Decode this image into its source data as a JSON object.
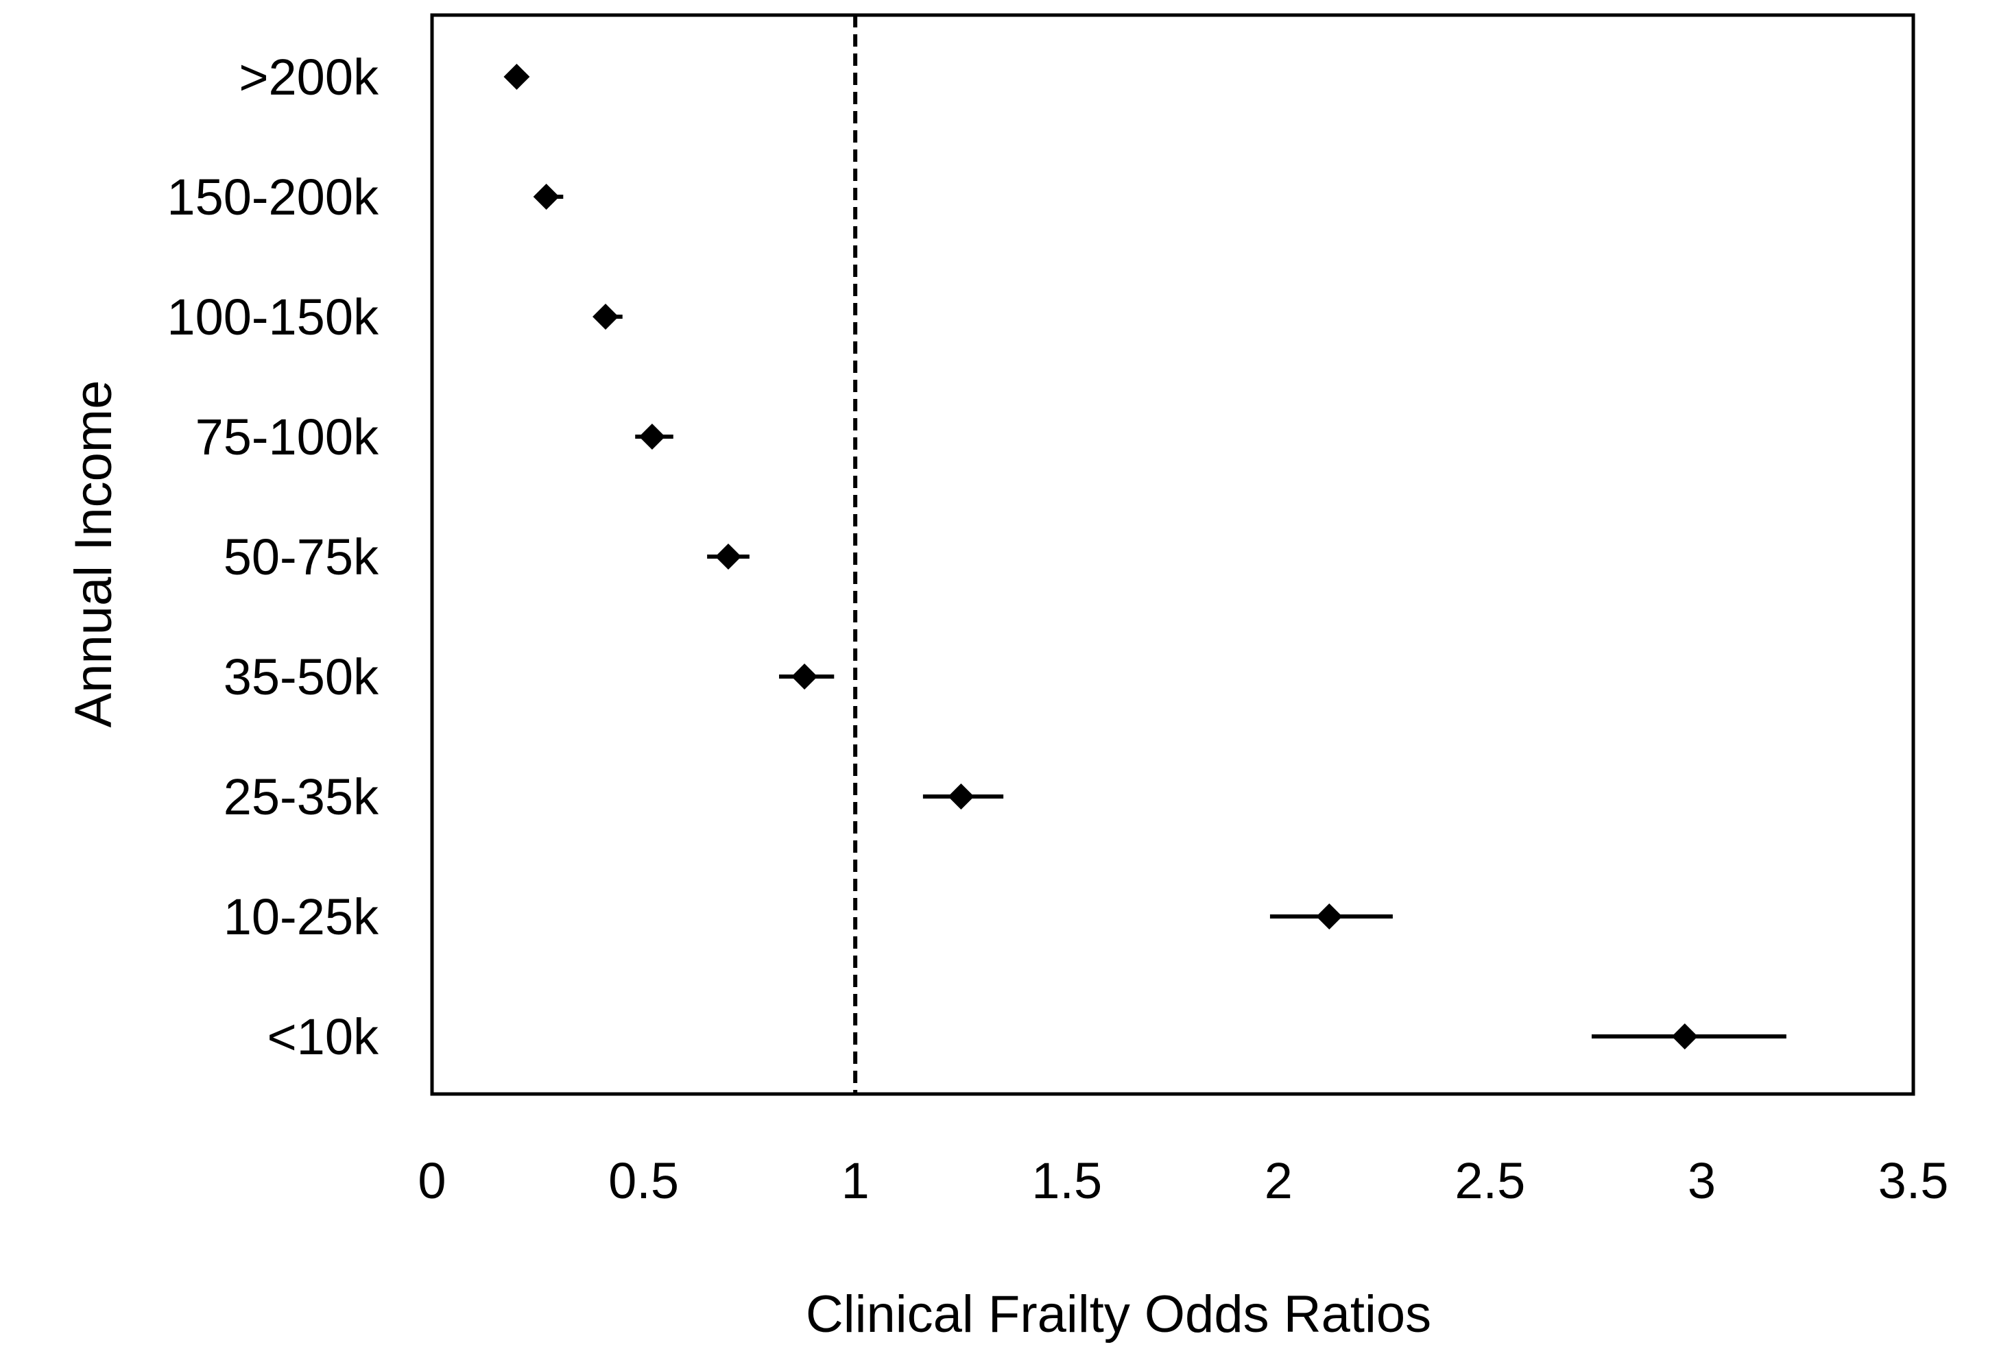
{
  "chart_data": {
    "type": "scatter",
    "subtype": "forest-plot",
    "title": "",
    "xlabel": "Clinical Frailty Odds Ratios",
    "ylabel": "Annual Income",
    "xlim": [
      0,
      3.5
    ],
    "x_ticks": [
      0,
      0.5,
      1,
      1.5,
      2,
      2.5,
      3,
      3.5
    ],
    "x_tick_labels": [
      "0",
      "0.5",
      "1",
      "1.5",
      "2",
      "2.5",
      "3",
      "3.5"
    ],
    "reference_line": 1,
    "grid": false,
    "legend": "none",
    "categories": [
      ">200k",
      "150-200k",
      "100-150k",
      "75-100k",
      "50-75k",
      "35-50k",
      "25-35k",
      "10-25k",
      "<10k"
    ],
    "values": [
      0.2,
      0.27,
      0.41,
      0.52,
      0.7,
      0.88,
      1.25,
      2.12,
      2.96
    ],
    "ci_lower": [
      0.19,
      0.25,
      0.39,
      0.48,
      0.65,
      0.82,
      1.16,
      1.98,
      2.74
    ],
    "ci_upper": [
      0.22,
      0.31,
      0.45,
      0.57,
      0.75,
      0.95,
      1.35,
      2.27,
      3.2
    ]
  }
}
